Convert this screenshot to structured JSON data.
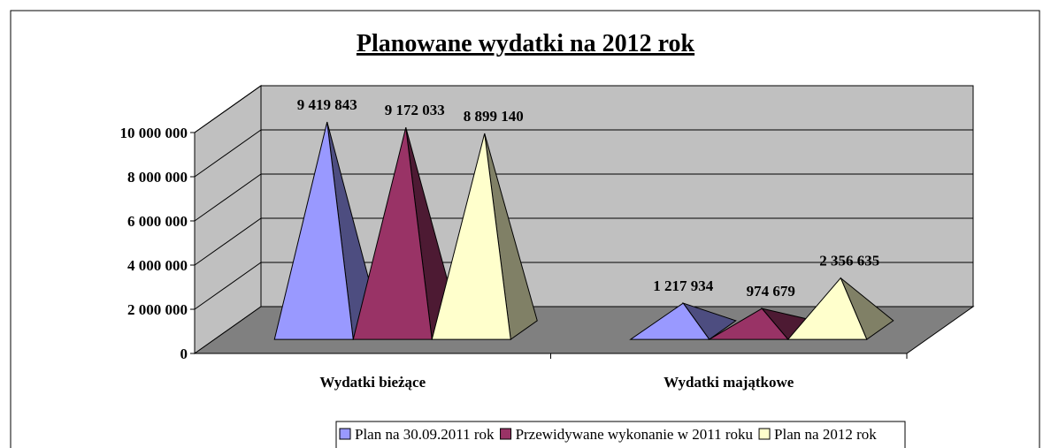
{
  "chart_data": {
    "type": "pyramid3d",
    "title": "Planowane wydatki na 2012 rok",
    "categories": [
      "Wydatki bieżące",
      "Wydatki majątkowe"
    ],
    "series": [
      {
        "name": "Plan na 30.09.2011 rok",
        "color": "#9999ff",
        "values": [
          9419843,
          1217934
        ],
        "value_labels": [
          "9 419 843",
          "1 217 934"
        ]
      },
      {
        "name": "Przewidywane wykonanie w 2011 roku",
        "color": "#993366",
        "values": [
          9172033,
          974679
        ],
        "value_labels": [
          "9 172 033",
          "974 679"
        ]
      },
      {
        "name": "Plan na 2012 rok",
        "color": "#ffffcc",
        "values": [
          8899140,
          2356635
        ],
        "value_labels": [
          "8 899 140",
          "2 356 635"
        ]
      }
    ],
    "ylim": [
      0,
      10000000
    ],
    "yticks": [
      {
        "value": 0,
        "label": "0"
      },
      {
        "value": 2000000,
        "label": "2 000 000"
      },
      {
        "value": 4000000,
        "label": "4 000 000"
      },
      {
        "value": 6000000,
        "label": "6 000 000"
      },
      {
        "value": 8000000,
        "label": "8 000 000"
      },
      {
        "value": 10000000,
        "label": "10 000 000"
      }
    ],
    "grid": true,
    "legend": "bottom"
  }
}
